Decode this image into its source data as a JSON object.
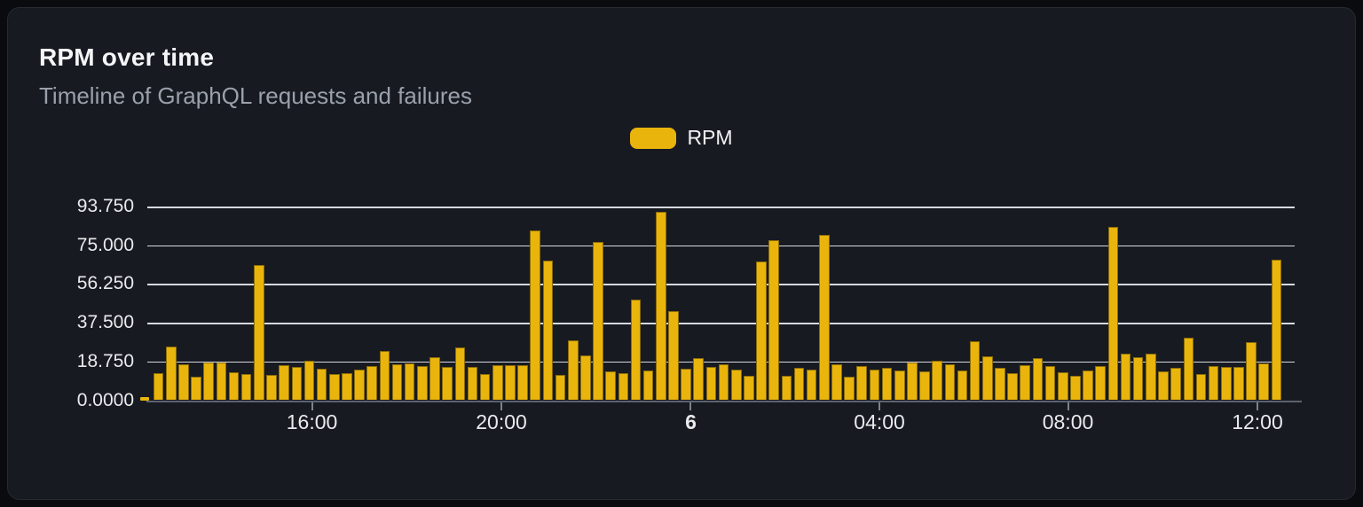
{
  "card": {
    "title": "RPM over time",
    "subtitle": "Timeline of GraphQL requests and failures"
  },
  "chart_data": {
    "type": "bar",
    "title": "RPM over time",
    "subtitle": "Timeline of GraphQL requests and failures",
    "series_name": "RPM",
    "bar_color": "#e9b40c",
    "legend_position": "top-center",
    "grid": true,
    "ylim": [
      0,
      93.75
    ],
    "y_ticks": [
      "93.750",
      "75.000",
      "56.250",
      "37.500",
      "18.750",
      "0.0000"
    ],
    "x_ticks": [
      {
        "label": "16:00",
        "pos": 14.35,
        "bold": false
      },
      {
        "label": "20:00",
        "pos": 30.86,
        "bold": false
      },
      {
        "label": "6",
        "pos": 47.37,
        "bold": true
      },
      {
        "label": "04:00",
        "pos": 63.81,
        "bold": false
      },
      {
        "label": "08:00",
        "pos": 80.24,
        "bold": false
      },
      {
        "label": "12:00",
        "pos": 96.75,
        "bold": false
      }
    ],
    "values": [
      13.1,
      25.8,
      17.3,
      11.4,
      18.2,
      18.2,
      13.5,
      12.8,
      65.6,
      12.1,
      17.0,
      16.0,
      19.0,
      15.1,
      12.5,
      13.0,
      14.7,
      16.6,
      23.8,
      17.3,
      17.6,
      16.6,
      20.9,
      16.2,
      25.6,
      15.9,
      12.5,
      16.8,
      16.8,
      17.0,
      82.1,
      67.7,
      12.1,
      28.9,
      21.6,
      76.4,
      13.9,
      13.2,
      48.6,
      14.2,
      91.3,
      43.0,
      15.2,
      20.2,
      15.9,
      17.3,
      14.9,
      11.6,
      67.3,
      77.5,
      11.8,
      15.6,
      14.6,
      80.1,
      17.5,
      11.4,
      16.6,
      14.9,
      15.6,
      14.5,
      18.2,
      13.9,
      19.0,
      17.3,
      14.5,
      28.6,
      21.2,
      15.6,
      13.3,
      16.9,
      20.2,
      16.6,
      13.6,
      11.9,
      14.2,
      16.5,
      83.8,
      22.6,
      20.7,
      22.4,
      14.1,
      15.8,
      30.2,
      12.6,
      16.6,
      15.9,
      16.3,
      28.1,
      18.0,
      68.1
    ]
  }
}
